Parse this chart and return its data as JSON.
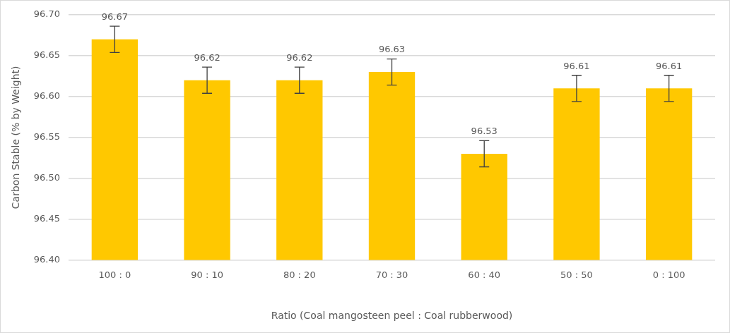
{
  "chart_data": {
    "type": "bar",
    "xlabel": "Ratio (Coal mangosteen peel : Coal rubberwood)",
    "ylabel": "Carbon Stable (% by Weight)",
    "categories": [
      "100 : 0",
      "90 : 10",
      "80 : 20",
      "70 : 30",
      "60 : 40",
      "50 : 50",
      "0 : 100"
    ],
    "values": [
      96.67,
      96.62,
      96.62,
      96.63,
      96.53,
      96.61,
      96.61
    ],
    "errors": [
      0.016,
      0.016,
      0.016,
      0.016,
      0.016,
      0.016,
      0.016
    ],
    "color": "#ffc800",
    "data_labels": true,
    "grid": "y",
    "legend": false,
    "ylim": [
      96.4,
      96.7
    ],
    "yticks": [
      {
        "value": 96.4,
        "label": "96.40"
      },
      {
        "value": 96.45,
        "label": "96.45"
      },
      {
        "value": 96.5,
        "label": "96.50"
      },
      {
        "value": 96.55,
        "label": "96.55"
      },
      {
        "value": 96.6,
        "label": "96.60"
      },
      {
        "value": 96.65,
        "label": "96.65"
      },
      {
        "value": 96.7,
        "label": "96.70"
      }
    ]
  }
}
